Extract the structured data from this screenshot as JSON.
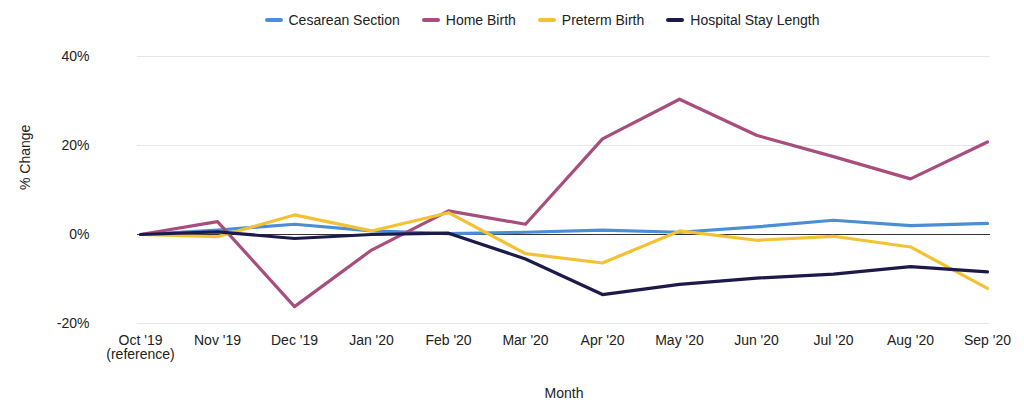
{
  "chart_data": {
    "type": "line",
    "x_label": "Month",
    "y_label": "% Change",
    "categories": [
      "Oct '19\n(reference)",
      "Nov '19",
      "Dec '19",
      "Jan '20",
      "Feb '20",
      "Mar '20",
      "Apr '20",
      "May '20",
      "Jun '20",
      "Jul '20",
      "Aug '20",
      "Sep '20"
    ],
    "series": [
      {
        "name": "Cesarean Section",
        "color": "#4a8fd6",
        "values": [
          0,
          1,
          2.3,
          0.8,
          0.2,
          0.5,
          1,
          0.5,
          1.7,
          3.2,
          2,
          2.5
        ]
      },
      {
        "name": "Home Birth",
        "color": "#a84e7e",
        "values": [
          0,
          2.9,
          -16.2,
          -3.5,
          5.3,
          2.3,
          21.5,
          30.4,
          22.3,
          17.5,
          12.5,
          20.8
        ]
      },
      {
        "name": "Preterm Birth",
        "color": "#f3c234",
        "values": [
          0,
          -0.5,
          4.4,
          0.8,
          4.9,
          -4.3,
          -6.4,
          0.8,
          -1.3,
          -0.4,
          -2.8,
          -12.1
        ]
      },
      {
        "name": "Hospital Stay Length",
        "color": "#1c1a4a",
        "values": [
          0,
          0.6,
          -0.9,
          0,
          0.3,
          -5.5,
          -13.5,
          -11.2,
          -9.8,
          -8.9,
          -7.2,
          -8.4
        ]
      }
    ],
    "ylim": [
      -20,
      40
    ],
    "yticks": [
      {
        "value": -20,
        "label": "-20%"
      },
      {
        "value": 0,
        "label": "0%"
      },
      {
        "value": 20,
        "label": "20%"
      },
      {
        "value": 40,
        "label": "40%"
      }
    ],
    "grid": true,
    "legend": "top"
  }
}
